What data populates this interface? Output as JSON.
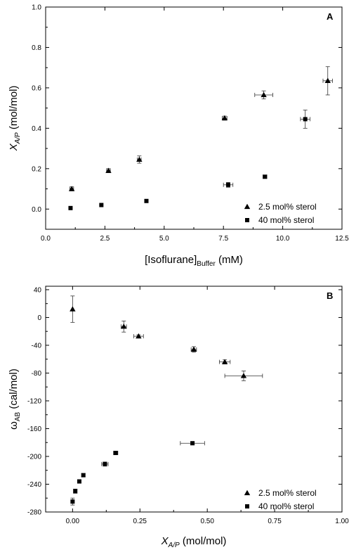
{
  "chart_data": [
    {
      "type": "scatter",
      "panel_label": "A",
      "xlabel": {
        "main": "[Isoflurane]",
        "sub": "Buffer",
        "tail": " (mM)"
      },
      "ylabel": {
        "main": "X",
        "sub": "A/P",
        "tail": " (mol/mol)"
      },
      "xlim": [
        0.0,
        12.5
      ],
      "ylim": [
        -0.1,
        1.0
      ],
      "xticks": [
        0.0,
        2.5,
        5.0,
        7.5,
        10.0,
        12.5
      ],
      "xtick_labels": [
        "0.0",
        "2.5",
        "5.0",
        "7.5",
        "10.0",
        "12.5"
      ],
      "yticks": [
        0.0,
        0.2,
        0.4,
        0.6,
        0.8,
        1.0
      ],
      "ytick_labels": [
        "0.0",
        "0.2",
        "0.4",
        "0.6",
        "0.8",
        "1.0"
      ],
      "grid": false,
      "legend_position": "bottom-right",
      "series": [
        {
          "name": "2.5 mol% sterol",
          "marker": "triangle",
          "points": [
            {
              "x": 1.1,
              "y": 0.1,
              "xerr": 0.08,
              "yerr": 0.01
            },
            {
              "x": 2.65,
              "y": 0.19,
              "xerr": 0.08,
              "yerr": 0.01
            },
            {
              "x": 3.95,
              "y": 0.245,
              "xerr": 0.08,
              "yerr": 0.018
            },
            {
              "x": 7.55,
              "y": 0.45,
              "xerr": 0.1,
              "yerr": 0.01
            },
            {
              "x": 9.2,
              "y": 0.565,
              "xerr": 0.38,
              "yerr": 0.02
            },
            {
              "x": 11.9,
              "y": 0.635,
              "xerr": 0.2,
              "yerr": 0.07
            }
          ]
        },
        {
          "name": "40 mol% sterol",
          "marker": "square",
          "points": [
            {
              "x": 1.05,
              "y": 0.005,
              "xerr": 0.0,
              "yerr": 0.0
            },
            {
              "x": 2.35,
              "y": 0.02,
              "xerr": 0.0,
              "yerr": 0.0
            },
            {
              "x": 4.25,
              "y": 0.04,
              "xerr": 0.0,
              "yerr": 0.0
            },
            {
              "x": 7.7,
              "y": 0.12,
              "xerr": 0.2,
              "yerr": 0.012
            },
            {
              "x": 9.25,
              "y": 0.16,
              "xerr": 0.08,
              "yerr": 0.008
            },
            {
              "x": 10.95,
              "y": 0.445,
              "xerr": 0.2,
              "yerr": 0.045
            }
          ]
        }
      ]
    },
    {
      "type": "scatter",
      "panel_label": "B",
      "xlabel": {
        "main": "X",
        "sub": "A/P",
        "tail": " (mol/mol)"
      },
      "ylabel": {
        "main": "ω",
        "sub": "AB",
        "tail": " (cal/mol)"
      },
      "xlim": [
        -0.1,
        1.0
      ],
      "ylim": [
        -280,
        45
      ],
      "xticks": [
        0.0,
        0.25,
        0.5,
        0.75,
        1.0
      ],
      "xtick_labels": [
        "0.00",
        "0.25",
        "0.50",
        "0.75",
        "1.00"
      ],
      "yticks": [
        -280,
        -240,
        -200,
        -160,
        -120,
        -80,
        -40,
        0,
        40
      ],
      "ytick_labels": [
        "-280",
        "-240",
        "-200",
        "-160",
        "-120",
        "-80",
        "-40",
        "0",
        "40"
      ],
      "grid": false,
      "legend_position": "bottom-right",
      "series": [
        {
          "name": "2.5 mol% sterol",
          "marker": "triangle",
          "points": [
            {
              "x": 0.0,
              "y": 12,
              "xerr": 0.0,
              "yerr": 19
            },
            {
              "x": 0.19,
              "y": -13,
              "xerr": 0.01,
              "yerr": 8
            },
            {
              "x": 0.245,
              "y": -27,
              "xerr": 0.018,
              "yerr": 2
            },
            {
              "x": 0.45,
              "y": -46,
              "xerr": 0.01,
              "yerr": 4
            },
            {
              "x": 0.565,
              "y": -64,
              "xerr": 0.02,
              "yerr": 3
            },
            {
              "x": 0.635,
              "y": -84,
              "xerr": 0.07,
              "yerr": 7
            }
          ]
        },
        {
          "name": "40 mol% sterol",
          "marker": "square",
          "points": [
            {
              "x": 0.0,
              "y": -265,
              "xerr": 0.0,
              "yerr": 5
            },
            {
              "x": 0.01,
              "y": -250,
              "xerr": 0.0,
              "yerr": 3
            },
            {
              "x": 0.025,
              "y": -236,
              "xerr": 0.005,
              "yerr": 2
            },
            {
              "x": 0.04,
              "y": -227,
              "xerr": 0.006,
              "yerr": 2
            },
            {
              "x": 0.12,
              "y": -211,
              "xerr": 0.012,
              "yerr": 3
            },
            {
              "x": 0.16,
              "y": -195,
              "xerr": 0.008,
              "yerr": 2
            },
            {
              "x": 0.445,
              "y": -181,
              "xerr": 0.045,
              "yerr": 2
            }
          ]
        }
      ]
    }
  ]
}
